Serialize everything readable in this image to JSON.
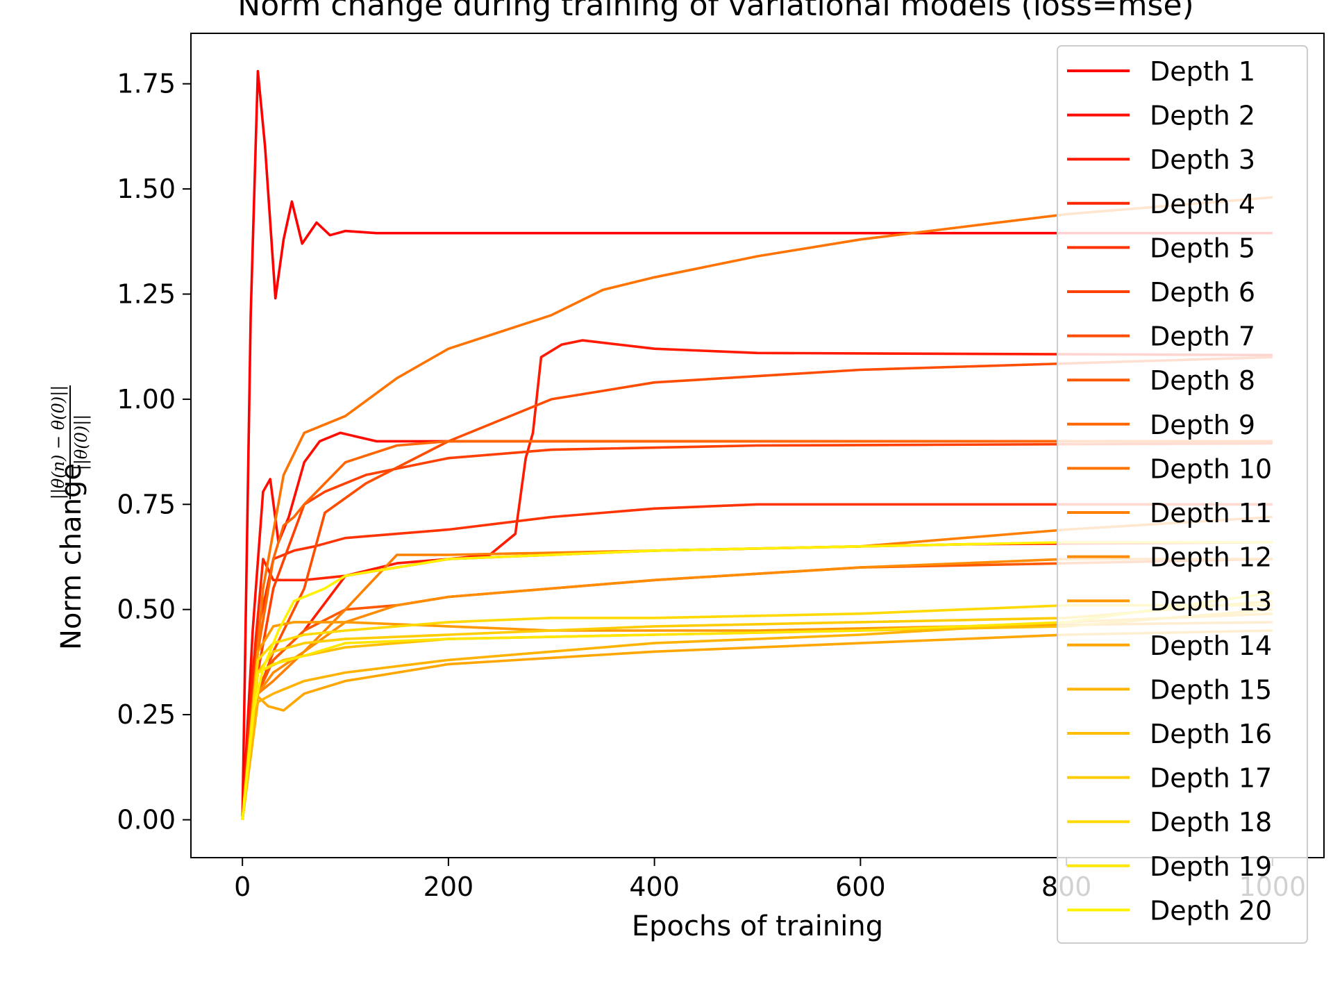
{
  "chart_data": {
    "type": "line",
    "title": "Norm change during training of variational models (loss=mse)",
    "xlabel": "Epochs of training",
    "ylabel": "Norm change",
    "ylabel_fraction": {
      "numerator": "||θ(n) − θ(0)||",
      "denominator": "||θ(0)||"
    },
    "xlim": [
      -50,
      1050
    ],
    "ylim": [
      -0.09,
      1.87
    ],
    "x_ticks": [
      0,
      200,
      400,
      600,
      800,
      1000
    ],
    "x_tick_labels": [
      "0",
      "200",
      "400",
      "600",
      "800",
      "1000"
    ],
    "y_ticks": [
      0,
      0.25,
      0.5,
      0.75,
      1.0,
      1.25,
      1.5,
      1.75
    ],
    "y_tick_labels": [
      "0.00",
      "0.25",
      "0.50",
      "0.75",
      "1.00",
      "1.25",
      "1.50",
      "1.75"
    ],
    "grid": false,
    "legend_position": "upper-right",
    "series": [
      {
        "name": "Depth 1",
        "color": "#ff0000",
        "points": [
          [
            0,
            0
          ],
          [
            8,
            1.2
          ],
          [
            15,
            1.78
          ],
          [
            22,
            1.6
          ],
          [
            32,
            1.24
          ],
          [
            40,
            1.38
          ],
          [
            48,
            1.47
          ],
          [
            58,
            1.37
          ],
          [
            72,
            1.42
          ],
          [
            85,
            1.39
          ],
          [
            100,
            1.4
          ],
          [
            130,
            1.395
          ],
          [
            1000,
            1.395
          ]
        ]
      },
      {
        "name": "Depth 2",
        "color": "#ff0d00",
        "points": [
          [
            0,
            0
          ],
          [
            10,
            0.45
          ],
          [
            20,
            0.78
          ],
          [
            27,
            0.81
          ],
          [
            35,
            0.66
          ],
          [
            45,
            0.72
          ],
          [
            60,
            0.85
          ],
          [
            75,
            0.9
          ],
          [
            95,
            0.92
          ],
          [
            130,
            0.9
          ],
          [
            300,
            0.9
          ],
          [
            1000,
            0.9
          ]
        ]
      },
      {
        "name": "Depth 3",
        "color": "#ff1a00",
        "points": [
          [
            0,
            0
          ],
          [
            12,
            0.3
          ],
          [
            30,
            0.38
          ],
          [
            60,
            0.45
          ],
          [
            100,
            0.58
          ],
          [
            150,
            0.61
          ],
          [
            200,
            0.62
          ],
          [
            240,
            0.63
          ],
          [
            265,
            0.68
          ],
          [
            275,
            0.86
          ],
          [
            282,
            0.92
          ],
          [
            290,
            1.1
          ],
          [
            310,
            1.13
          ],
          [
            330,
            1.14
          ],
          [
            400,
            1.12
          ],
          [
            500,
            1.11
          ],
          [
            1000,
            1.105
          ]
        ]
      },
      {
        "name": "Depth 4",
        "color": "#ff2600",
        "points": [
          [
            0,
            0
          ],
          [
            10,
            0.35
          ],
          [
            20,
            0.62
          ],
          [
            30,
            0.57
          ],
          [
            60,
            0.57
          ],
          [
            100,
            0.58
          ],
          [
            200,
            0.62
          ],
          [
            400,
            0.64
          ],
          [
            700,
            0.655
          ],
          [
            1000,
            0.66
          ]
        ]
      },
      {
        "name": "Depth 5",
        "color": "#ff3300",
        "points": [
          [
            0,
            0
          ],
          [
            15,
            0.45
          ],
          [
            30,
            0.62
          ],
          [
            50,
            0.64
          ],
          [
            70,
            0.65
          ],
          [
            100,
            0.67
          ],
          [
            200,
            0.69
          ],
          [
            300,
            0.72
          ],
          [
            400,
            0.74
          ],
          [
            500,
            0.75
          ],
          [
            1000,
            0.75
          ]
        ]
      },
      {
        "name": "Depth 6",
        "color": "#ff4000",
        "points": [
          [
            0,
            0
          ],
          [
            15,
            0.35
          ],
          [
            30,
            0.55
          ],
          [
            45,
            0.65
          ],
          [
            60,
            0.75
          ],
          [
            80,
            0.78
          ],
          [
            120,
            0.82
          ],
          [
            200,
            0.86
          ],
          [
            300,
            0.88
          ],
          [
            500,
            0.89
          ],
          [
            1000,
            0.895
          ]
        ]
      },
      {
        "name": "Depth 7",
        "color": "#ff4d00",
        "points": [
          [
            0,
            0
          ],
          [
            15,
            0.3
          ],
          [
            30,
            0.4
          ],
          [
            60,
            0.55
          ],
          [
            80,
            0.73
          ],
          [
            120,
            0.8
          ],
          [
            200,
            0.9
          ],
          [
            300,
            1.0
          ],
          [
            400,
            1.04
          ],
          [
            600,
            1.07
          ],
          [
            800,
            1.085
          ],
          [
            1000,
            1.1
          ]
        ]
      },
      {
        "name": "Depth 8",
        "color": "#ff5900",
        "points": [
          [
            0,
            0
          ],
          [
            15,
            0.3
          ],
          [
            30,
            0.38
          ],
          [
            60,
            0.45
          ],
          [
            100,
            0.5
          ],
          [
            150,
            0.51
          ],
          [
            200,
            0.53
          ],
          [
            400,
            0.57
          ],
          [
            600,
            0.6
          ],
          [
            800,
            0.61
          ],
          [
            1000,
            0.62
          ]
        ]
      },
      {
        "name": "Depth 9",
        "color": "#ff6600",
        "points": [
          [
            0,
            0
          ],
          [
            15,
            0.4
          ],
          [
            30,
            0.62
          ],
          [
            40,
            0.7
          ],
          [
            50,
            0.72
          ],
          [
            60,
            0.75
          ],
          [
            80,
            0.8
          ],
          [
            100,
            0.85
          ],
          [
            150,
            0.89
          ],
          [
            200,
            0.9
          ],
          [
            400,
            0.9
          ],
          [
            1000,
            0.9
          ]
        ]
      },
      {
        "name": "Depth 10",
        "color": "#ff7300",
        "points": [
          [
            0,
            0
          ],
          [
            20,
            0.55
          ],
          [
            40,
            0.82
          ],
          [
            60,
            0.92
          ],
          [
            80,
            0.94
          ],
          [
            100,
            0.96
          ],
          [
            150,
            1.05
          ],
          [
            200,
            1.12
          ],
          [
            250,
            1.16
          ],
          [
            300,
            1.2
          ],
          [
            350,
            1.26
          ],
          [
            400,
            1.29
          ],
          [
            500,
            1.34
          ],
          [
            600,
            1.38
          ],
          [
            700,
            1.41
          ],
          [
            800,
            1.44
          ],
          [
            1000,
            1.48
          ]
        ]
      },
      {
        "name": "Depth 11",
        "color": "#ff8000",
        "points": [
          [
            0,
            0
          ],
          [
            15,
            0.3
          ],
          [
            30,
            0.33
          ],
          [
            60,
            0.4
          ],
          [
            100,
            0.5
          ],
          [
            150,
            0.63
          ],
          [
            200,
            0.63
          ],
          [
            400,
            0.64
          ],
          [
            600,
            0.65
          ],
          [
            800,
            0.69
          ],
          [
            1000,
            0.72
          ]
        ]
      },
      {
        "name": "Depth 12",
        "color": "#ff8c00",
        "points": [
          [
            0,
            0
          ],
          [
            15,
            0.3
          ],
          [
            30,
            0.35
          ],
          [
            60,
            0.4
          ],
          [
            100,
            0.47
          ],
          [
            150,
            0.51
          ],
          [
            200,
            0.53
          ],
          [
            400,
            0.57
          ],
          [
            600,
            0.6
          ],
          [
            800,
            0.62
          ],
          [
            1000,
            0.62
          ]
        ]
      },
      {
        "name": "Depth 13",
        "color": "#ff9900",
        "points": [
          [
            0,
            0
          ],
          [
            15,
            0.4
          ],
          [
            30,
            0.46
          ],
          [
            50,
            0.47
          ],
          [
            100,
            0.47
          ],
          [
            200,
            0.46
          ],
          [
            300,
            0.45
          ],
          [
            500,
            0.45
          ],
          [
            700,
            0.46
          ],
          [
            1000,
            0.47
          ]
        ]
      },
      {
        "name": "Depth 14",
        "color": "#ffa600",
        "points": [
          [
            0,
            0
          ],
          [
            12,
            0.3
          ],
          [
            25,
            0.27
          ],
          [
            40,
            0.26
          ],
          [
            60,
            0.3
          ],
          [
            100,
            0.33
          ],
          [
            200,
            0.37
          ],
          [
            400,
            0.4
          ],
          [
            600,
            0.42
          ],
          [
            800,
            0.44
          ],
          [
            1000,
            0.45
          ]
        ]
      },
      {
        "name": "Depth 15",
        "color": "#ffb300",
        "points": [
          [
            0,
            0
          ],
          [
            15,
            0.28
          ],
          [
            30,
            0.3
          ],
          [
            60,
            0.33
          ],
          [
            100,
            0.35
          ],
          [
            200,
            0.38
          ],
          [
            400,
            0.42
          ],
          [
            600,
            0.44
          ],
          [
            800,
            0.47
          ],
          [
            1000,
            0.49
          ]
        ]
      },
      {
        "name": "Depth 16",
        "color": "#ffbf00",
        "points": [
          [
            0,
            0
          ],
          [
            15,
            0.35
          ],
          [
            40,
            0.38
          ],
          [
            100,
            0.41
          ],
          [
            200,
            0.43
          ],
          [
            400,
            0.44
          ],
          [
            600,
            0.45
          ],
          [
            800,
            0.46
          ],
          [
            1000,
            0.5
          ]
        ]
      },
      {
        "name": "Depth 17",
        "color": "#ffcc00",
        "points": [
          [
            0,
            0
          ],
          [
            15,
            0.35
          ],
          [
            30,
            0.4
          ],
          [
            60,
            0.42
          ],
          [
            100,
            0.43
          ],
          [
            200,
            0.44
          ],
          [
            400,
            0.46
          ],
          [
            600,
            0.47
          ],
          [
            800,
            0.48
          ],
          [
            1000,
            0.52
          ]
        ]
      },
      {
        "name": "Depth 18",
        "color": "#ffd900",
        "points": [
          [
            0,
            0
          ],
          [
            15,
            0.38
          ],
          [
            30,
            0.42
          ],
          [
            60,
            0.44
          ],
          [
            100,
            0.45
          ],
          [
            200,
            0.47
          ],
          [
            300,
            0.48
          ],
          [
            400,
            0.48
          ],
          [
            600,
            0.49
          ],
          [
            800,
            0.51
          ],
          [
            1000,
            0.51
          ]
        ]
      },
      {
        "name": "Depth 19",
        "color": "#ffe600",
        "points": [
          [
            0,
            0
          ],
          [
            15,
            0.35
          ],
          [
            30,
            0.37
          ],
          [
            60,
            0.39
          ],
          [
            100,
            0.42
          ],
          [
            200,
            0.43
          ],
          [
            400,
            0.44
          ],
          [
            600,
            0.45
          ],
          [
            800,
            0.47
          ],
          [
            1000,
            0.54
          ]
        ]
      },
      {
        "name": "Depth 20",
        "color": "#fff200",
        "points": [
          [
            0,
            0
          ],
          [
            10,
            0.25
          ],
          [
            20,
            0.36
          ],
          [
            35,
            0.45
          ],
          [
            50,
            0.52
          ],
          [
            80,
            0.55
          ],
          [
            100,
            0.58
          ],
          [
            150,
            0.6
          ],
          [
            200,
            0.62
          ],
          [
            400,
            0.64
          ],
          [
            600,
            0.65
          ],
          [
            800,
            0.66
          ],
          [
            1000,
            0.66
          ]
        ]
      }
    ]
  }
}
